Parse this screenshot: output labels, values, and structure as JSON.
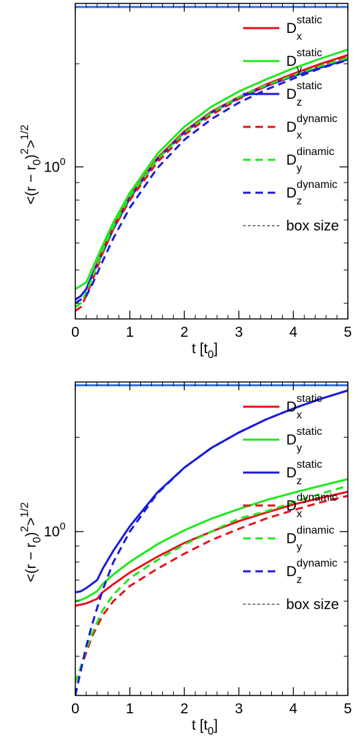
{
  "chart_data": [
    {
      "type": "line",
      "xlabel": "t [t0]",
      "ylabel": "<(r − r0)^2>^1/2",
      "xlim": [
        0,
        5
      ],
      "ylim": [
        0.36,
        3.0
      ],
      "y_scale": "log",
      "x_ticks": [
        "0",
        "1",
        "2",
        "3",
        "4",
        "5"
      ],
      "y_ticks": [
        {
          "value": 1.0,
          "label": "10^0"
        }
      ],
      "legend_position": "top-right",
      "series": [
        {
          "name": "Dx static",
          "color": "#e8111b",
          "dash": "solid",
          "x": [
            0,
            0.1,
            0.2,
            0.3,
            0.5,
            0.7,
            1.0,
            1.5,
            2.0,
            2.5,
            3.0,
            3.5,
            4.0,
            4.5,
            5.0
          ],
          "y": [
            0.41,
            0.42,
            0.44,
            0.48,
            0.57,
            0.67,
            0.82,
            1.06,
            1.27,
            1.45,
            1.6,
            1.74,
            1.87,
            2.0,
            2.12
          ]
        },
        {
          "name": "Dy static",
          "color": "#1ee81e",
          "dash": "solid",
          "x": [
            0,
            0.1,
            0.2,
            0.3,
            0.5,
            0.7,
            1.0,
            1.5,
            2.0,
            2.5,
            3.0,
            3.5,
            4.0,
            4.5,
            5.0
          ],
          "y": [
            0.44,
            0.45,
            0.46,
            0.5,
            0.59,
            0.69,
            0.84,
            1.09,
            1.31,
            1.5,
            1.66,
            1.8,
            1.94,
            2.07,
            2.2
          ]
        },
        {
          "name": "Dz static",
          "color": "#1b1bd6",
          "dash": "solid",
          "x": [
            0,
            0.1,
            0.2,
            0.3,
            0.5,
            0.7,
            1.0,
            1.5,
            2.0,
            2.5,
            3.0,
            3.5,
            4.0,
            4.5,
            5.0
          ],
          "y": [
            0.41,
            0.42,
            0.44,
            0.48,
            0.56,
            0.66,
            0.81,
            1.05,
            1.26,
            1.44,
            1.59,
            1.72,
            1.84,
            1.95,
            2.06
          ]
        },
        {
          "name": "Dx dynamic",
          "color": "#e8111b",
          "dash": "dashed",
          "x": [
            0,
            0.1,
            0.2,
            0.3,
            0.5,
            0.7,
            1.0,
            1.5,
            2.0,
            2.5,
            3.0,
            3.5,
            4.0,
            4.5,
            5.0
          ],
          "y": [
            0.38,
            0.39,
            0.42,
            0.46,
            0.56,
            0.66,
            0.8,
            1.03,
            1.24,
            1.42,
            1.58,
            1.72,
            1.85,
            1.98,
            2.1
          ]
        },
        {
          "name": "Dy dinamic",
          "color": "#1ee81e",
          "dash": "dashed",
          "x": [
            0,
            0.1,
            0.2,
            0.3,
            0.5,
            0.7,
            1.0,
            1.5,
            2.0,
            2.5,
            3.0,
            3.5,
            4.0,
            4.5,
            5.0
          ],
          "y": [
            0.39,
            0.4,
            0.43,
            0.47,
            0.57,
            0.67,
            0.82,
            1.05,
            1.26,
            1.44,
            1.6,
            1.73,
            1.85,
            1.97,
            2.08
          ]
        },
        {
          "name": "Dz dynamic",
          "color": "#1b1bd6",
          "dash": "dashed",
          "x": [
            0,
            0.1,
            0.2,
            0.3,
            0.5,
            0.7,
            1.0,
            1.5,
            2.0,
            2.5,
            3.0,
            3.5,
            4.0,
            4.5,
            5.0
          ],
          "y": [
            0.4,
            0.41,
            0.42,
            0.45,
            0.53,
            0.62,
            0.76,
            0.99,
            1.2,
            1.38,
            1.54,
            1.68,
            1.81,
            1.94,
            2.05
          ]
        },
        {
          "name": "box size",
          "color": "#2e6ee8",
          "dash": "solid",
          "role": "box-size",
          "x": [
            0,
            5
          ],
          "y": [
            2.93,
            2.93
          ]
        }
      ]
    },
    {
      "type": "line",
      "xlabel": "t [t0]",
      "ylabel": "<(r − r0)^2>^1/2",
      "xlim": [
        0,
        5
      ],
      "ylim": [
        0.3,
        3.0
      ],
      "y_scale": "log",
      "x_ticks": [
        "0",
        "1",
        "2",
        "3",
        "4",
        "5"
      ],
      "y_ticks": [
        {
          "value": 1.0,
          "label": "10^0"
        }
      ],
      "legend_position": "top-right",
      "series": [
        {
          "name": "Dx static",
          "color": "#e8111b",
          "dash": "solid",
          "x": [
            0,
            0.1,
            0.2,
            0.3,
            0.4,
            0.5,
            0.7,
            1.0,
            1.5,
            2.0,
            2.5,
            3.0,
            3.5,
            4.0,
            4.5,
            5.0
          ],
          "y": [
            0.58,
            0.585,
            0.59,
            0.6,
            0.61,
            0.64,
            0.68,
            0.74,
            0.83,
            0.92,
            1.0,
            1.08,
            1.15,
            1.22,
            1.28,
            1.34
          ]
        },
        {
          "name": "Dy static",
          "color": "#1ee81e",
          "dash": "solid",
          "x": [
            0,
            0.1,
            0.2,
            0.3,
            0.4,
            0.5,
            0.7,
            1.0,
            1.5,
            2.0,
            2.5,
            3.0,
            3.5,
            4.0,
            4.5,
            5.0
          ],
          "y": [
            0.6,
            0.605,
            0.615,
            0.63,
            0.645,
            0.68,
            0.73,
            0.8,
            0.91,
            1.01,
            1.1,
            1.18,
            1.26,
            1.33,
            1.4,
            1.47
          ]
        },
        {
          "name": "Dz static",
          "color": "#1b1bd6",
          "dash": "solid",
          "x": [
            0,
            0.1,
            0.2,
            0.3,
            0.4,
            0.5,
            0.7,
            1.0,
            1.5,
            2.0,
            2.5,
            3.0,
            3.5,
            4.0,
            4.5,
            5.0
          ],
          "y": [
            0.64,
            0.645,
            0.66,
            0.68,
            0.7,
            0.76,
            0.87,
            1.04,
            1.33,
            1.6,
            1.85,
            2.07,
            2.28,
            2.47,
            2.65,
            2.82
          ]
        },
        {
          "name": "Dx dynamic",
          "color": "#e8111b",
          "dash": "dashed",
          "x": [
            0,
            0.1,
            0.2,
            0.3,
            0.5,
            0.7,
            1.0,
            1.5,
            2.0,
            2.5,
            3.0,
            3.5,
            4.0,
            4.5,
            5.0
          ],
          "y": [
            0.33,
            0.37,
            0.41,
            0.46,
            0.54,
            0.6,
            0.67,
            0.76,
            0.85,
            0.94,
            1.02,
            1.1,
            1.17,
            1.24,
            1.3
          ]
        },
        {
          "name": "Dy dinamic",
          "color": "#1ee81e",
          "dash": "dashed",
          "x": [
            0,
            0.1,
            0.2,
            0.3,
            0.5,
            0.7,
            1.0,
            1.5,
            2.0,
            2.5,
            3.0,
            3.5,
            4.0,
            4.5,
            5.0
          ],
          "y": [
            0.33,
            0.37,
            0.42,
            0.47,
            0.56,
            0.63,
            0.71,
            0.81,
            0.91,
            1.0,
            1.1,
            1.16,
            1.24,
            1.32,
            1.4
          ]
        },
        {
          "name": "Dz dynamic",
          "color": "#1b1bd6",
          "dash": "dashed",
          "x": [
            0,
            0.1,
            0.2,
            0.3,
            0.5,
            0.7,
            1.0,
            1.5,
            2.0,
            2.5,
            3.0,
            3.5,
            4.0,
            4.5,
            5.0
          ],
          "y": [
            0.3,
            0.36,
            0.43,
            0.5,
            0.65,
            0.8,
            1.0,
            1.32,
            1.6,
            1.85,
            2.07,
            2.28,
            2.47,
            2.65,
            2.82
          ]
        },
        {
          "name": "box size",
          "color": "#2e6ee8",
          "dash": "solid",
          "role": "box-size",
          "x": [
            0,
            5
          ],
          "y": [
            2.93,
            2.93
          ]
        }
      ]
    }
  ],
  "legend": [
    {
      "base": "D",
      "sup": "static",
      "sub": "x",
      "color": "#e8111b",
      "dash": "solid"
    },
    {
      "base": "D",
      "sup": "static",
      "sub": "y",
      "color": "#1ee81e",
      "dash": "solid"
    },
    {
      "base": "D",
      "sup": "static",
      "sub": "z",
      "color": "#1b1bd6",
      "dash": "solid"
    },
    {
      "base": "D",
      "sup": "dynamic",
      "sub": "x",
      "color": "#e8111b",
      "dash": "dashed"
    },
    {
      "base": "D",
      "sup": "dinamic",
      "sub": "y",
      "color": "#1ee81e",
      "dash": "dashed"
    },
    {
      "base": "D",
      "sup": "dynamic",
      "sub": "z",
      "color": "#1b1bd6",
      "dash": "dashed"
    },
    {
      "base": "box size",
      "sup": "",
      "sub": "",
      "color": "#000000",
      "dash": "thin-dashed"
    }
  ],
  "labels": {
    "ylabel_main": "<(r − r",
    "ylabel_sub": "0",
    "ylabel_mid": ")",
    "ylabel_sup1": "2",
    "ylabel_end": ">",
    "ylabel_sup2": "1/2",
    "xlabel_main": "t [t",
    "xlabel_sub": "0",
    "xlabel_end": "]",
    "ytick_base": "10",
    "ytick_exp": "0"
  }
}
